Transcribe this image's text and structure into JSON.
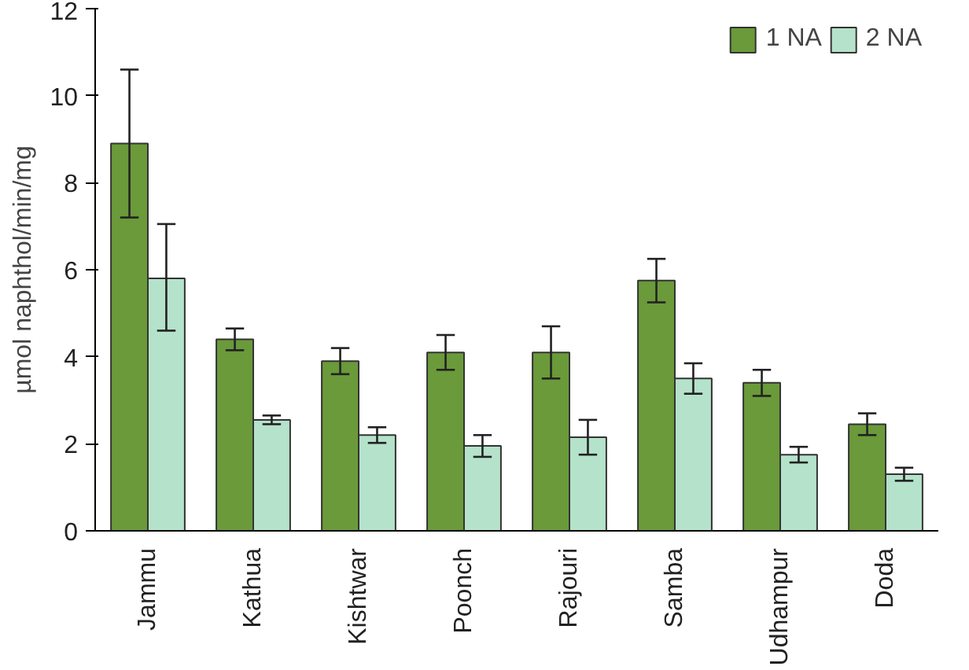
{
  "chart_data": {
    "type": "bar",
    "ylabel": "µmol naphthol/min/mg",
    "categories": [
      "Jammu",
      "Kathua",
      "Kishtwar",
      "Poonch",
      "Rajouri",
      "Samba",
      "Udhampur",
      "Doda"
    ],
    "series": [
      {
        "name": "1 NA",
        "color": "#6a9a3a",
        "values": [
          8.9,
          4.4,
          3.9,
          4.1,
          4.1,
          5.75,
          3.4,
          2.45
        ],
        "errors": [
          [
            7.2,
            10.6
          ],
          0.25,
          0.3,
          0.4,
          0.6,
          0.5,
          0.3,
          0.25
        ]
      },
      {
        "name": "2 NA",
        "color": "#b5e2cb",
        "values": [
          5.8,
          2.55,
          2.2,
          1.95,
          2.15,
          3.5,
          1.75,
          1.3
        ],
        "errors": [
          [
            4.6,
            7.05
          ],
          0.1,
          0.18,
          0.25,
          0.4,
          0.35,
          0.18,
          0.15
        ]
      }
    ],
    "ylim": [
      0,
      12
    ],
    "yticks": [
      0,
      2,
      4,
      6,
      8,
      10,
      12
    ],
    "grid": false,
    "legend": "top right"
  }
}
